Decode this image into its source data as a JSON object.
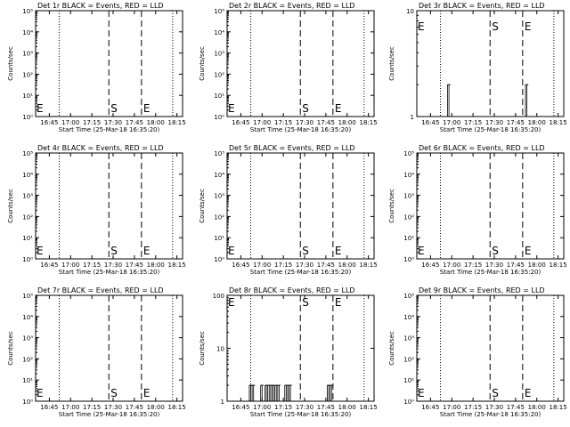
{
  "chart_data": [
    {
      "type": "line",
      "title": "Det 1r BLACK = Events, RED = LLD",
      "ylabel": "Counts/sec",
      "xlabel": "Start Time (25-Mar-18 16:35:20)",
      "yscale": "log",
      "ytick_labels": [
        "10⁰",
        "10¹",
        "10²",
        "10³",
        "10⁴",
        "10⁵"
      ],
      "xtick_labels": [
        "16:45",
        "17:00",
        "17:15",
        "17:30",
        "17:45",
        "18:00",
        "18:15"
      ],
      "dotted_lines": [
        "16:52",
        "18:12"
      ],
      "markers": [
        {
          "label": "E",
          "time": "16:36"
        },
        {
          "label": "S",
          "time": "17:27"
        },
        {
          "label": "E",
          "time": "17:50"
        }
      ],
      "spikes": []
    },
    {
      "type": "line",
      "title": "Det 2r BLACK = Events, RED = LLD",
      "ylabel": "Counts/sec",
      "xlabel": "Start Time (25-Mar-18 16:35:20)",
      "yscale": "log",
      "ytick_labels": [
        "10⁰",
        "10¹",
        "10²",
        "10³",
        "10⁴",
        "10⁵"
      ],
      "xtick_labels": [
        "16:45",
        "17:00",
        "17:15",
        "17:30",
        "17:45",
        "18:00",
        "18:15"
      ],
      "dotted_lines": [
        "16:52",
        "18:12"
      ],
      "markers": [
        {
          "label": "E",
          "time": "16:36"
        },
        {
          "label": "S",
          "time": "17:27"
        },
        {
          "label": "E",
          "time": "17:50"
        }
      ],
      "spikes": []
    },
    {
      "type": "line",
      "title": "Det 3r BLACK = Events, RED = LLD",
      "ylabel": "Counts/sec",
      "xlabel": "Start Time (25-Mar-18 16:35:20)",
      "yscale": "log",
      "ytick_labels": [
        "1",
        "10"
      ],
      "xtick_labels": [
        "16:45",
        "17:00",
        "17:15",
        "17:30",
        "17:45",
        "18:00",
        "18:15"
      ],
      "dotted_lines": [
        "16:52",
        "18:12"
      ],
      "markers": [
        {
          "label": "E",
          "time": "16:36"
        },
        {
          "label": "S",
          "time": "17:27"
        },
        {
          "label": "E",
          "time": "17:50"
        }
      ],
      "spikes": [
        [
          "16:57",
          "16:59",
          2
        ],
        [
          "17:52",
          "17:54",
          2
        ]
      ]
    },
    {
      "type": "line",
      "title": "Det 4r BLACK = Events, RED = LLD",
      "ylabel": "Counts/sec",
      "xlabel": "Start Time (25-Mar-18 16:35:20)",
      "yscale": "log",
      "ytick_labels": [
        "10⁰",
        "10¹",
        "10²",
        "10³",
        "10⁴",
        "10⁵"
      ],
      "xtick_labels": [
        "16:45",
        "17:00",
        "17:15",
        "17:30",
        "17:45",
        "18:00",
        "18:15"
      ],
      "dotted_lines": [
        "16:52",
        "18:12"
      ],
      "markers": [
        {
          "label": "E",
          "time": "16:36"
        },
        {
          "label": "S",
          "time": "17:27"
        },
        {
          "label": "E",
          "time": "17:50"
        }
      ],
      "spikes": []
    },
    {
      "type": "line",
      "title": "Det 5r BLACK = Events, RED = LLD",
      "ylabel": "Counts/sec",
      "xlabel": "Start Time (25-Mar-18 16:35:20)",
      "yscale": "log",
      "ytick_labels": [
        "10⁰",
        "10¹",
        "10²",
        "10³",
        "10⁴",
        "10⁵"
      ],
      "xtick_labels": [
        "16:45",
        "17:00",
        "17:15",
        "17:30",
        "17:45",
        "18:00",
        "18:15"
      ],
      "dotted_lines": [
        "16:52",
        "18:12"
      ],
      "markers": [
        {
          "label": "E",
          "time": "16:36"
        },
        {
          "label": "S",
          "time": "17:27"
        },
        {
          "label": "E",
          "time": "17:50"
        }
      ],
      "spikes": []
    },
    {
      "type": "line",
      "title": "Det 6r BLACK = Events, RED = LLD",
      "ylabel": "Counts/sec",
      "xlabel": "Start Time (25-Mar-18 16:35:20)",
      "yscale": "log",
      "ytick_labels": [
        "10⁰",
        "10¹",
        "10²",
        "10³",
        "10⁴",
        "10⁵"
      ],
      "xtick_labels": [
        "16:45",
        "17:00",
        "17:15",
        "17:30",
        "17:45",
        "18:00",
        "18:15"
      ],
      "dotted_lines": [
        "16:52",
        "18:12"
      ],
      "markers": [
        {
          "label": "E",
          "time": "16:36"
        },
        {
          "label": "S",
          "time": "17:27"
        },
        {
          "label": "E",
          "time": "17:50"
        }
      ],
      "spikes": []
    },
    {
      "type": "line",
      "title": "Det 7r BLACK = Events, RED = LLD",
      "ylabel": "Counts/sec",
      "xlabel": "Start Time (25-Mar-18 16:35:20)",
      "yscale": "log",
      "ytick_labels": [
        "10⁰",
        "10¹",
        "10²",
        "10³",
        "10⁴",
        "10⁵"
      ],
      "xtick_labels": [
        "16:45",
        "17:00",
        "17:15",
        "17:30",
        "17:45",
        "18:00",
        "18:15"
      ],
      "dotted_lines": [
        "16:52",
        "18:12"
      ],
      "markers": [
        {
          "label": "E",
          "time": "16:36"
        },
        {
          "label": "S",
          "time": "17:27"
        },
        {
          "label": "E",
          "time": "17:50"
        }
      ],
      "spikes": []
    },
    {
      "type": "line",
      "title": "Det 8r BLACK = Events, RED = LLD",
      "ylabel": "Counts/sec",
      "xlabel": "Start Time (25-Mar-18 16:35:20)",
      "yscale": "log",
      "ytick_labels": [
        "1",
        "10",
        "100"
      ],
      "xtick_labels": [
        "16:45",
        "17:00",
        "17:15",
        "17:30",
        "17:45",
        "18:00",
        "18:15"
      ],
      "dotted_lines": [
        "16:52",
        "18:12"
      ],
      "markers": [
        {
          "label": "E",
          "time": "16:36"
        },
        {
          "label": "S",
          "time": "17:27"
        },
        {
          "label": "E",
          "time": "17:50"
        }
      ],
      "spikes": [
        [
          "16:51",
          "16:55",
          2
        ],
        [
          "16:59",
          "17:01",
          2
        ],
        [
          "17:02",
          "17:13",
          2
        ],
        [
          "17:16",
          "17:21",
          2
        ],
        [
          "17:46",
          "17:50",
          2
        ]
      ]
    },
    {
      "type": "line",
      "title": "Det 9r BLACK = Events, RED = LLD",
      "ylabel": "Counts/sec",
      "xlabel": "Start Time (25-Mar-18 16:35:20)",
      "yscale": "log",
      "ytick_labels": [
        "10⁰",
        "10¹",
        "10²",
        "10³",
        "10⁴",
        "10⁵"
      ],
      "xtick_labels": [
        "16:45",
        "17:00",
        "17:15",
        "17:30",
        "17:45",
        "18:00",
        "18:15"
      ],
      "dotted_lines": [
        "16:52",
        "18:12"
      ],
      "markers": [
        {
          "label": "E",
          "time": "16:36"
        },
        {
          "label": "S",
          "time": "17:27"
        },
        {
          "label": "E",
          "time": "17:50"
        }
      ],
      "spikes": []
    }
  ]
}
